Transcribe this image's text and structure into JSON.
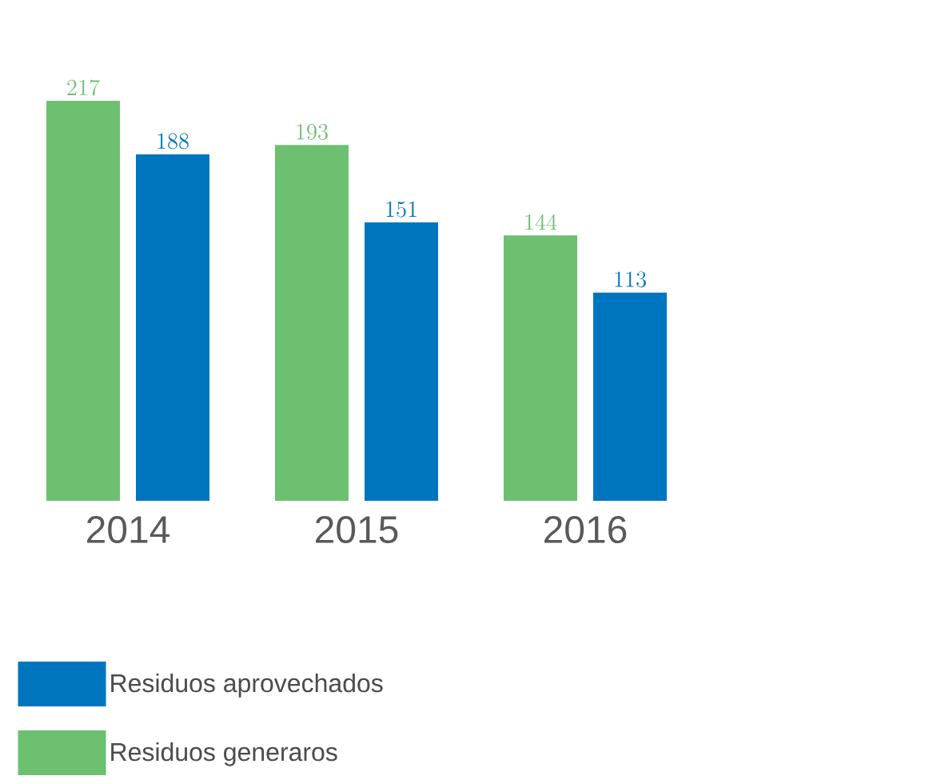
{
  "chart_data": {
    "type": "bar",
    "categories": [
      "2014",
      "2015",
      "2016"
    ],
    "series": [
      {
        "name": "Residuos generaros",
        "color": "#6cc070",
        "values": [
          217,
          193,
          144
        ]
      },
      {
        "name": "Residuos aprovechados",
        "color": "#0075bf",
        "values": [
          188,
          151,
          113
        ]
      }
    ],
    "data_labels": true,
    "legend": "bottom left"
  }
}
